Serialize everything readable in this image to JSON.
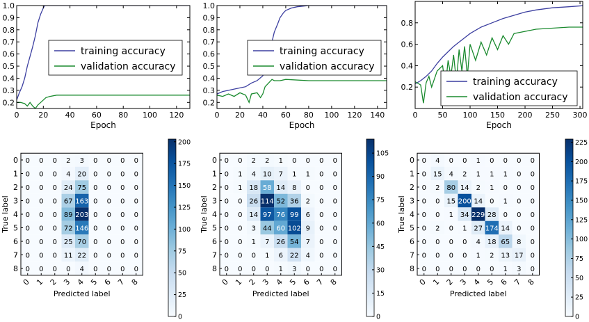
{
  "chart_data": [
    {
      "type": "line",
      "xlabel": "Epoch",
      "xlim": [
        0,
        130
      ],
      "ylim": [
        0.15,
        1.0
      ],
      "xticks": [
        0,
        20,
        40,
        60,
        80,
        100,
        120
      ],
      "yticks": [
        0.2,
        0.3,
        0.4,
        0.5,
        0.6,
        0.7,
        0.8,
        0.9,
        1.0
      ],
      "ytick_labels": [
        "0.2",
        "0.3",
        "0.4",
        "0.5",
        "0.6",
        "0.7",
        "0.8",
        "0.9",
        "1.0"
      ],
      "legend_position": "center-right",
      "series": [
        {
          "name": "training accuracy",
          "color": "#3c3fa0",
          "x": [
            0,
            2,
            4,
            6,
            8,
            10,
            12,
            14,
            16,
            18,
            20,
            21,
            22,
            130
          ],
          "y": [
            0.22,
            0.28,
            0.33,
            0.4,
            0.5,
            0.58,
            0.66,
            0.75,
            0.86,
            0.93,
            0.98,
            1.0,
            1.0,
            1.0
          ]
        },
        {
          "name": "validation accuracy",
          "color": "#1a8a2e",
          "x": [
            0,
            3,
            6,
            8,
            10,
            12,
            14,
            16,
            18,
            20,
            22,
            25,
            30,
            40,
            60,
            130
          ],
          "y": [
            0.2,
            0.2,
            0.19,
            0.17,
            0.2,
            0.17,
            0.15,
            0.18,
            0.2,
            0.22,
            0.24,
            0.25,
            0.26,
            0.26,
            0.26,
            0.26
          ]
        }
      ]
    },
    {
      "type": "line",
      "xlabel": "Epoch",
      "xlim": [
        0,
        148
      ],
      "ylim": [
        0.15,
        1.0
      ],
      "xticks": [
        0,
        20,
        40,
        60,
        80,
        100,
        120,
        140
      ],
      "yticks": [
        0.2,
        0.3,
        0.4,
        0.5,
        0.6,
        0.7,
        0.8,
        0.9,
        1.0
      ],
      "ytick_labels": [
        "0.2",
        "0.3",
        "0.4",
        "0.5",
        "0.6",
        "0.7",
        "0.8",
        "0.9",
        "1.0"
      ],
      "legend_position": "center-right",
      "series": [
        {
          "name": "training accuracy",
          "color": "#3c3fa0",
          "x": [
            0,
            5,
            10,
            15,
            20,
            25,
            30,
            35,
            40,
            43,
            45,
            48,
            50,
            53,
            55,
            58,
            60,
            65,
            70,
            80,
            148
          ],
          "y": [
            0.27,
            0.29,
            0.3,
            0.31,
            0.32,
            0.33,
            0.36,
            0.38,
            0.42,
            0.5,
            0.6,
            0.7,
            0.78,
            0.85,
            0.9,
            0.94,
            0.96,
            0.98,
            0.99,
            1.0,
            1.0
          ]
        },
        {
          "name": "validation accuracy",
          "color": "#1a8a2e",
          "x": [
            0,
            5,
            10,
            15,
            20,
            25,
            28,
            30,
            35,
            38,
            40,
            42,
            45,
            48,
            50,
            55,
            60,
            80,
            100,
            148
          ],
          "y": [
            0.26,
            0.25,
            0.27,
            0.25,
            0.28,
            0.26,
            0.2,
            0.27,
            0.28,
            0.24,
            0.27,
            0.33,
            0.36,
            0.39,
            0.38,
            0.38,
            0.39,
            0.38,
            0.38,
            0.38
          ]
        }
      ]
    },
    {
      "type": "line",
      "xlabel": "Epoch",
      "xlim": [
        0,
        305
      ],
      "ylim": [
        0.0,
        1.0
      ],
      "xticks": [
        0,
        50,
        100,
        150,
        200,
        250,
        300
      ],
      "yticks": [
        0.2,
        0.4,
        0.6,
        0.8
      ],
      "ytick_labels": [
        "0.2",
        "0.4",
        "0.6",
        "0.8"
      ],
      "legend_position": "lower-right",
      "series": [
        {
          "name": "training accuracy",
          "color": "#3c3fa0",
          "x": [
            0,
            10,
            20,
            30,
            40,
            50,
            60,
            70,
            80,
            90,
            100,
            120,
            140,
            160,
            180,
            200,
            220,
            250,
            280,
            305
          ],
          "y": [
            0.23,
            0.26,
            0.3,
            0.35,
            0.42,
            0.48,
            0.53,
            0.58,
            0.62,
            0.66,
            0.7,
            0.76,
            0.8,
            0.84,
            0.87,
            0.9,
            0.92,
            0.94,
            0.95,
            0.96
          ]
        },
        {
          "name": "validation accuracy",
          "color": "#1a8a2e",
          "x": [
            0,
            10,
            15,
            20,
            25,
            30,
            40,
            50,
            55,
            60,
            65,
            70,
            75,
            80,
            85,
            90,
            95,
            100,
            110,
            120,
            130,
            140,
            150,
            160,
            170,
            180,
            200,
            220,
            250,
            280,
            305
          ],
          "y": [
            0.25,
            0.22,
            0.05,
            0.24,
            0.3,
            0.2,
            0.35,
            0.4,
            0.2,
            0.45,
            0.3,
            0.5,
            0.25,
            0.55,
            0.35,
            0.58,
            0.3,
            0.6,
            0.45,
            0.62,
            0.5,
            0.66,
            0.55,
            0.68,
            0.6,
            0.7,
            0.72,
            0.74,
            0.75,
            0.76,
            0.76
          ]
        }
      ]
    },
    {
      "type": "heatmap",
      "xlabel": "Predicted label",
      "ylabel": "True label",
      "labels": [
        "0",
        "1",
        "2",
        "3",
        "4",
        "5",
        "6",
        "7",
        "8"
      ],
      "vmax": 203,
      "colorbar_ticks": [
        0,
        25,
        50,
        75,
        100,
        125,
        150,
        175,
        200
      ],
      "matrix": [
        [
          0,
          0,
          0,
          2,
          3,
          0,
          0,
          0,
          0
        ],
        [
          0,
          0,
          0,
          4,
          20,
          0,
          0,
          0,
          0
        ],
        [
          0,
          0,
          0,
          24,
          75,
          0,
          0,
          0,
          0
        ],
        [
          0,
          0,
          0,
          67,
          163,
          0,
          0,
          0,
          0
        ],
        [
          0,
          0,
          0,
          89,
          203,
          0,
          0,
          0,
          0
        ],
        [
          0,
          0,
          0,
          72,
          146,
          0,
          0,
          0,
          0
        ],
        [
          0,
          0,
          0,
          25,
          70,
          0,
          0,
          0,
          0
        ],
        [
          0,
          0,
          0,
          11,
          22,
          0,
          0,
          0,
          0
        ],
        [
          0,
          0,
          0,
          0,
          4,
          0,
          0,
          0,
          0
        ]
      ]
    },
    {
      "type": "heatmap",
      "xlabel": "Predicted label",
      "ylabel": "True label",
      "labels": [
        "0",
        "1",
        "2",
        "3",
        "4",
        "5",
        "6",
        "7",
        "8"
      ],
      "vmax": 114,
      "colorbar_ticks": [
        0,
        15,
        30,
        45,
        60,
        75,
        90,
        105
      ],
      "matrix": [
        [
          0,
          0,
          2,
          2,
          1,
          0,
          0,
          0,
          0
        ],
        [
          0,
          1,
          4,
          10,
          7,
          1,
          1,
          0,
          0
        ],
        [
          0,
          1,
          18,
          58,
          14,
          8,
          0,
          0,
          0
        ],
        [
          0,
          0,
          26,
          114,
          52,
          36,
          2,
          0,
          0
        ],
        [
          0,
          0,
          14,
          97,
          76,
          99,
          6,
          0,
          0
        ],
        [
          0,
          0,
          3,
          44,
          60,
          102,
          9,
          0,
          0
        ],
        [
          0,
          0,
          1,
          7,
          26,
          54,
          7,
          0,
          0
        ],
        [
          0,
          0,
          0,
          1,
          6,
          22,
          4,
          0,
          0
        ],
        [
          0,
          0,
          0,
          0,
          1,
          3,
          0,
          0,
          0
        ]
      ]
    },
    {
      "type": "heatmap",
      "xlabel": "Predicted label",
      "ylabel": "True label",
      "labels": [
        "0",
        "1",
        "2",
        "3",
        "4",
        "5",
        "6",
        "7",
        "8"
      ],
      "vmax": 229,
      "colorbar_ticks": [
        0,
        25,
        50,
        75,
        100,
        125,
        150,
        175,
        200,
        225
      ],
      "matrix": [
        [
          0,
          4,
          0,
          0,
          1,
          0,
          0,
          0,
          0
        ],
        [
          0,
          15,
          4,
          2,
          1,
          1,
          1,
          0,
          0
        ],
        [
          0,
          2,
          80,
          14,
          2,
          1,
          0,
          0,
          0
        ],
        [
          0,
          0,
          15,
          200,
          14,
          0,
          1,
          0,
          0
        ],
        [
          0,
          0,
          1,
          34,
          229,
          28,
          0,
          0,
          0
        ],
        [
          0,
          2,
          0,
          1,
          27,
          174,
          14,
          0,
          0
        ],
        [
          0,
          0,
          0,
          0,
          4,
          18,
          65,
          8,
          0
        ],
        [
          0,
          0,
          0,
          0,
          1,
          2,
          13,
          17,
          0
        ],
        [
          0,
          0,
          0,
          0,
          0,
          0,
          1,
          3,
          0
        ]
      ]
    }
  ]
}
